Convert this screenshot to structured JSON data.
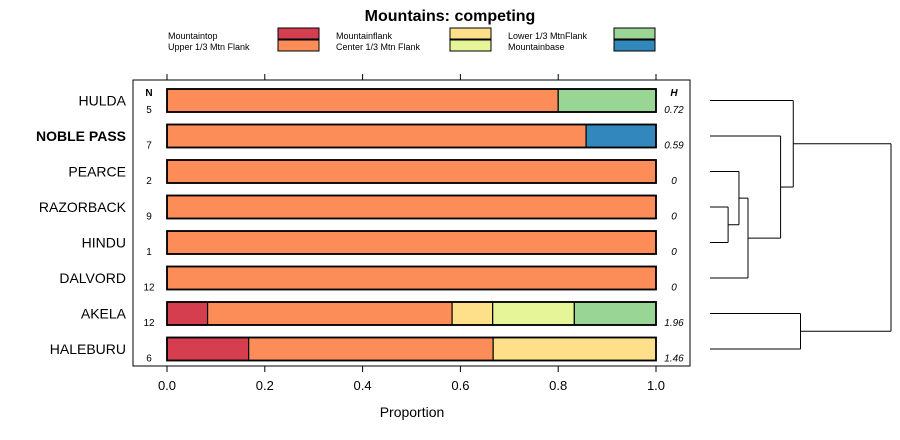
{
  "chart_data": {
    "type": "bar",
    "subtype": "stacked-horizontal-proportion",
    "title": "Mountains: competing",
    "xlabel": "Proportion",
    "ylabel": "",
    "xlim": [
      0,
      1
    ],
    "x_ticks": [
      "0.0",
      "0.2",
      "0.4",
      "0.6",
      "0.8",
      "1.0"
    ],
    "n_header": "N",
    "h_header": "H",
    "legend": [
      {
        "name": "Mountaintop",
        "color": "#d53e4f"
      },
      {
        "name": "Upper 1/3 Mtn Flank",
        "color": "#fc8d59"
      },
      {
        "name": "Mountainflank",
        "color": "#fee08b"
      },
      {
        "name": "Center 1/3 Mtn Flank",
        "color": "#e6f598"
      },
      {
        "name": "Lower 1/3 MtnFlank",
        "color": "#99d594"
      },
      {
        "name": "Mountainbase",
        "color": "#3288bd"
      }
    ],
    "categories": [
      "HULDA",
      "NOBLE PASS",
      "PEARCE",
      "RAZORBACK",
      "HINDU",
      "DALVORD",
      "AKELA",
      "HALEBURU"
    ],
    "highlighted_category": "NOBLE PASS",
    "n_values": [
      "5",
      "7",
      "2",
      "9",
      "1",
      "12",
      "12",
      "6"
    ],
    "h_values": [
      "0.72",
      "0.59",
      "0",
      "0",
      "0",
      "0",
      "1.96",
      "1.46"
    ],
    "series": [
      {
        "name": "Mountaintop",
        "values": [
          0,
          0,
          0,
          0,
          0,
          0,
          0.083,
          0.167
        ]
      },
      {
        "name": "Upper 1/3 Mtn Flank",
        "values": [
          0.8,
          0.857,
          1,
          1,
          1,
          1,
          0.5,
          0.5
        ]
      },
      {
        "name": "Mountainflank",
        "values": [
          0,
          0,
          0,
          0,
          0,
          0,
          0.083,
          0.333
        ]
      },
      {
        "name": "Center 1/3 Mtn Flank",
        "values": [
          0,
          0,
          0,
          0,
          0,
          0,
          0.167,
          0
        ]
      },
      {
        "name": "Lower 1/3 MtnFlank",
        "values": [
          0.2,
          0,
          0,
          0,
          0,
          0,
          0.167,
          0
        ]
      },
      {
        "name": "Mountainbase",
        "values": [
          0,
          0.143,
          0,
          0,
          0,
          0,
          0,
          0
        ]
      }
    ],
    "dendrogram_merges": [
      {
        "left": "RAZORBACK",
        "right": "HINDU",
        "height": 0.1
      },
      {
        "left": "PEARCE",
        "right": "RAZORBACK+HINDU",
        "height": 0.16
      },
      {
        "left": "PEARCE+RAZORBACK+HINDU",
        "right": "DALVORD",
        "height": 0.21
      },
      {
        "left": "NOBLE PASS",
        "right": "PEARCE+RAZORBACK+HINDU+DALVORD",
        "height": 0.39
      },
      {
        "left": "HULDA",
        "right": "NOBLE PASS+PEARCE+RAZORBACK+HINDU+DALVORD",
        "height": 0.46
      },
      {
        "left": "AKELA",
        "right": "HALEBURU",
        "height": 0.5
      },
      {
        "left": "HULDA+NOBLE PASS+PEARCE+RAZORBACK+HINDU+DALVORD",
        "right": "AKELA+HALEBURU",
        "height": 1.0
      }
    ]
  }
}
